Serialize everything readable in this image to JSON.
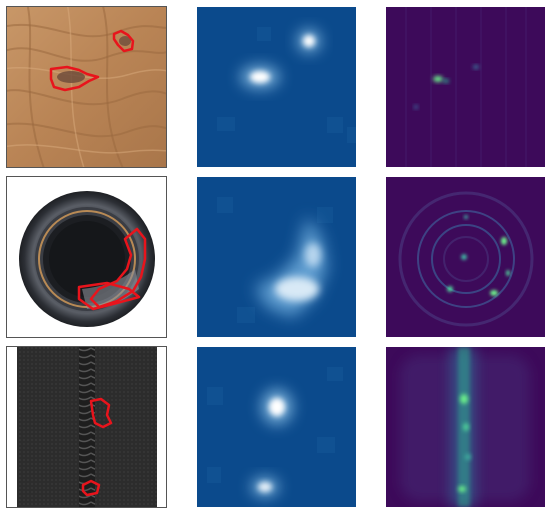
{
  "colors": {
    "background": "#ffffff",
    "contour": "#e8141c",
    "heatmap_base": "#0b4a8c",
    "heatmap_hot": "#ffffff",
    "viridis_base": "#3d0a5a",
    "viridis_hot": "#6cf08a"
  },
  "rows": [
    {
      "object": "wood",
      "columns": [
        "input-with-contour",
        "blue-heatmap",
        "viridis-map"
      ]
    },
    {
      "object": "metal-nut",
      "columns": [
        "input-with-contour",
        "blue-heatmap",
        "viridis-map"
      ]
    },
    {
      "object": "zipper",
      "columns": [
        "input-with-contour",
        "blue-heatmap",
        "viridis-map"
      ]
    }
  ]
}
